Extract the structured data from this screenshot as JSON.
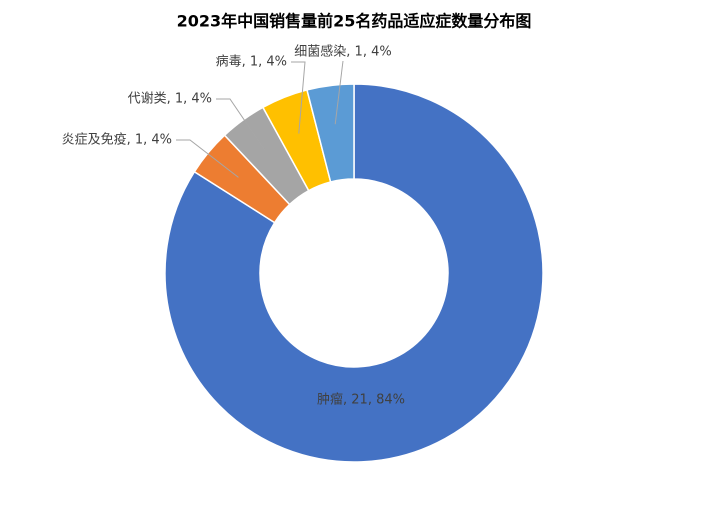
{
  "chart_data": {
    "type": "donut",
    "title": "2023年中国销售量前25名药品适应症数量分布图",
    "categories": [
      "肿瘤",
      "炎症及免疫",
      "代谢类",
      "病毒",
      "细菌感染"
    ],
    "values": [
      21,
      1,
      1,
      1,
      1
    ],
    "value_labels": [
      "肿瘤, 21, 84%",
      "炎症及免疫, 1, 4%",
      "代谢类, 1, 4%",
      "病毒, 1, 4%",
      "细菌感染, 1, 4%"
    ],
    "colors": [
      "#4472c4",
      "#ed7d31",
      "#a5a5a5",
      "#ffc000",
      "#5b9bd5"
    ]
  }
}
